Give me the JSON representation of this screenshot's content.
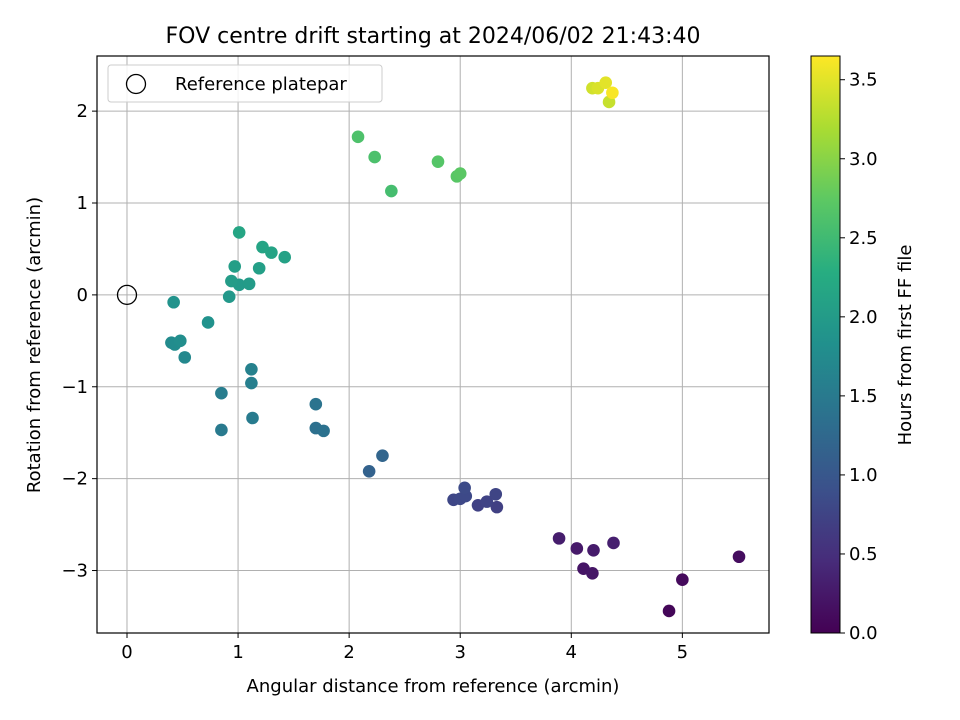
{
  "chart_data": {
    "type": "scatter",
    "title": "FOV centre drift starting at 2024/06/02 21:43:40",
    "xlabel": "Angular distance from reference (arcmin)",
    "ylabel": "Rotation from reference (arcmin)",
    "xlim": [
      -0.27,
      5.78
    ],
    "ylim": [
      -3.68,
      2.6
    ],
    "xticks": [
      0,
      1,
      2,
      3,
      4,
      5
    ],
    "yticks": [
      -3,
      -2,
      -1,
      0,
      1,
      2
    ],
    "grid": true,
    "legend": {
      "position": "top-left",
      "entries": [
        "Reference platepar"
      ]
    },
    "reference_point": {
      "x": 0,
      "y": 0,
      "label": "Reference platepar"
    },
    "colorbar": {
      "label": "Hours from first FF file",
      "colormap": "viridis",
      "range": [
        0,
        3.65
      ],
      "ticks": [
        "0.0",
        "0.5",
        "1.0",
        "1.5",
        "2.0",
        "2.5",
        "3.0",
        "3.5"
      ]
    },
    "points": [
      {
        "x": 4.88,
        "y": -3.44,
        "t": 0.05
      },
      {
        "x": 5.0,
        "y": -3.1,
        "t": 0.1
      },
      {
        "x": 5.51,
        "y": -2.85,
        "t": 0.13
      },
      {
        "x": 4.11,
        "y": -2.98,
        "t": 0.2
      },
      {
        "x": 4.19,
        "y": -3.03,
        "t": 0.22
      },
      {
        "x": 4.05,
        "y": -2.76,
        "t": 0.25
      },
      {
        "x": 4.2,
        "y": -2.78,
        "t": 0.28
      },
      {
        "x": 3.89,
        "y": -2.65,
        "t": 0.3
      },
      {
        "x": 4.38,
        "y": -2.7,
        "t": 0.32
      },
      {
        "x": 3.33,
        "y": -2.31,
        "t": 0.7
      },
      {
        "x": 3.16,
        "y": -2.29,
        "t": 0.72
      },
      {
        "x": 3.24,
        "y": -2.25,
        "t": 0.74
      },
      {
        "x": 3.32,
        "y": -2.17,
        "t": 0.76
      },
      {
        "x": 2.94,
        "y": -2.23,
        "t": 0.78
      },
      {
        "x": 3.0,
        "y": -2.22,
        "t": 0.8
      },
      {
        "x": 3.05,
        "y": -2.19,
        "t": 0.82
      },
      {
        "x": 3.04,
        "y": -2.1,
        "t": 0.84
      },
      {
        "x": 2.18,
        "y": -1.92,
        "t": 1.15
      },
      {
        "x": 2.3,
        "y": -1.75,
        "t": 1.2
      },
      {
        "x": 1.7,
        "y": -1.45,
        "t": 1.35
      },
      {
        "x": 1.77,
        "y": -1.48,
        "t": 1.37
      },
      {
        "x": 1.7,
        "y": -1.19,
        "t": 1.4
      },
      {
        "x": 0.85,
        "y": -1.47,
        "t": 1.5
      },
      {
        "x": 1.13,
        "y": -1.34,
        "t": 1.52
      },
      {
        "x": 0.85,
        "y": -1.07,
        "t": 1.55
      },
      {
        "x": 1.12,
        "y": -0.96,
        "t": 1.57
      },
      {
        "x": 1.12,
        "y": -0.81,
        "t": 1.6
      },
      {
        "x": 0.52,
        "y": -0.68,
        "t": 1.7
      },
      {
        "x": 0.4,
        "y": -0.52,
        "t": 1.75
      },
      {
        "x": 0.43,
        "y": -0.54,
        "t": 1.77
      },
      {
        "x": 0.48,
        "y": -0.5,
        "t": 1.79
      },
      {
        "x": 0.73,
        "y": -0.3,
        "t": 1.85
      },
      {
        "x": 0.42,
        "y": -0.08,
        "t": 1.88
      },
      {
        "x": 0.92,
        "y": -0.02,
        "t": 1.95
      },
      {
        "x": 1.01,
        "y": 0.11,
        "t": 1.98
      },
      {
        "x": 1.1,
        "y": 0.12,
        "t": 2.0
      },
      {
        "x": 0.94,
        "y": 0.15,
        "t": 2.02
      },
      {
        "x": 0.97,
        "y": 0.31,
        "t": 2.04
      },
      {
        "x": 1.19,
        "y": 0.29,
        "t": 2.06
      },
      {
        "x": 1.42,
        "y": 0.41,
        "t": 2.1
      },
      {
        "x": 1.3,
        "y": 0.46,
        "t": 2.12
      },
      {
        "x": 1.22,
        "y": 0.52,
        "t": 2.14
      },
      {
        "x": 1.01,
        "y": 0.68,
        "t": 2.16
      },
      {
        "x": 2.38,
        "y": 1.13,
        "t": 2.55
      },
      {
        "x": 2.23,
        "y": 1.5,
        "t": 2.6
      },
      {
        "x": 2.08,
        "y": 1.72,
        "t": 2.62
      },
      {
        "x": 2.8,
        "y": 1.45,
        "t": 2.68
      },
      {
        "x": 2.97,
        "y": 1.29,
        "t": 2.7
      },
      {
        "x": 3.0,
        "y": 1.32,
        "t": 2.72
      },
      {
        "x": 4.34,
        "y": 2.1,
        "t": 3.35
      },
      {
        "x": 4.19,
        "y": 2.25,
        "t": 3.4
      },
      {
        "x": 4.24,
        "y": 2.25,
        "t": 3.45
      },
      {
        "x": 4.31,
        "y": 2.31,
        "t": 3.5
      },
      {
        "x": 4.37,
        "y": 2.2,
        "t": 3.62
      }
    ]
  }
}
